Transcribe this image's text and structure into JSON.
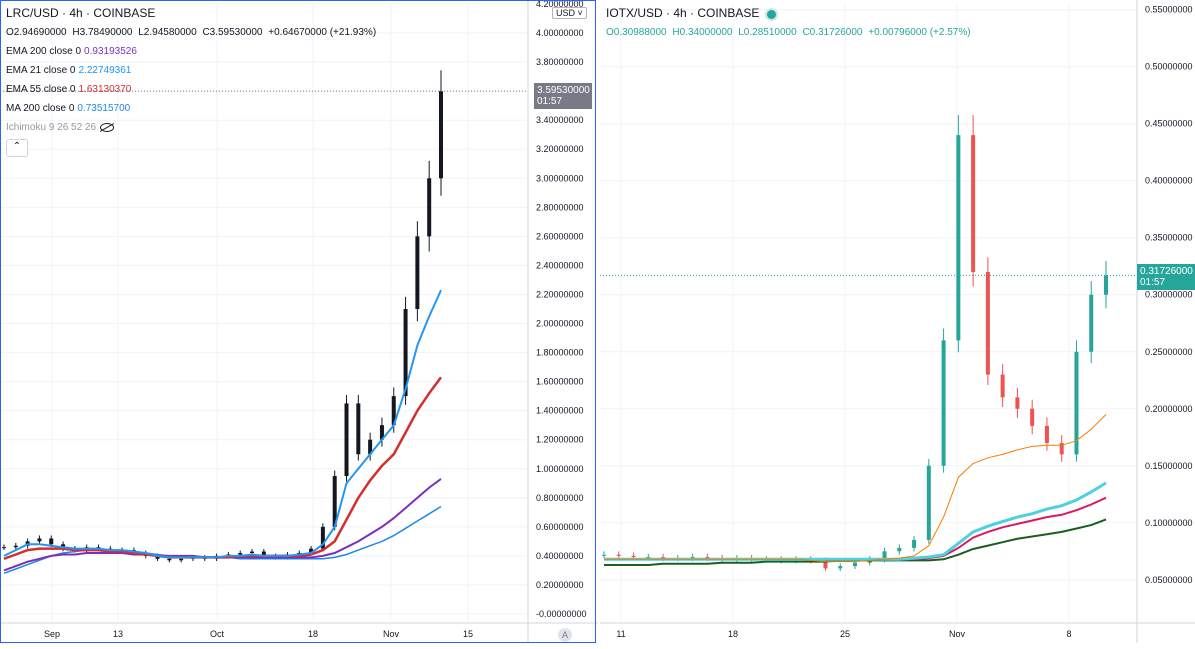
{
  "chart_data": [
    {
      "type": "candlestick",
      "title": "LRC/USD · 4h · COINBASE",
      "ohlc": {
        "open": "O2.94690000",
        "high": "H3.78490000",
        "low": "L2.94580000",
        "close": "C3.59530000",
        "change": "+0.64670000 (+21.93%)"
      },
      "last_price": "3.59530000",
      "countdown": "01:57",
      "currency": "USD",
      "indicators": [
        {
          "label": "EMA 200 close 0",
          "value": "0.93193526",
          "color": "#7b2fbe"
        },
        {
          "label": "EMA 21 close 0",
          "value": "2.22749361",
          "color": "#2196f3"
        },
        {
          "label": "EMA 55 close 0",
          "value": "1.63130370",
          "color": "#d32f2f"
        },
        {
          "label": "MA 200 close 0",
          "value": "0.73515700",
          "color": "#1e88e5"
        },
        {
          "label": "Ichimoku 9 26 52 26",
          "value": "",
          "color": "#b2b5be"
        }
      ],
      "y_ticks": [
        "4.20000000",
        "4.00000000",
        "3.80000000",
        "3.60000000",
        "3.40000000",
        "3.20000000",
        "3.00000000",
        "2.80000000",
        "2.60000000",
        "2.40000000",
        "2.20000000",
        "2.00000000",
        "1.80000000",
        "1.60000000",
        "1.40000000",
        "1.20000000",
        "1.00000000",
        "0.80000000",
        "0.60000000",
        "0.40000000",
        "0.20000000",
        "-0.00000000"
      ],
      "y_tick_values": [
        4.2,
        4.0,
        3.8,
        3.6,
        3.4,
        3.2,
        3.0,
        2.8,
        2.6,
        2.4,
        2.2,
        2.0,
        1.8,
        1.6,
        1.4,
        1.2,
        1.0,
        0.8,
        0.6,
        0.4,
        0.2,
        0.0
      ],
      "x_ticks": [
        "Sep",
        "13",
        "Oct",
        "18",
        "Nov",
        "15"
      ],
      "ylim": [
        0,
        4.2
      ],
      "close_series": [
        0.46,
        0.47,
        0.5,
        0.52,
        0.48,
        0.45,
        0.44,
        0.46,
        0.45,
        0.43,
        0.44,
        0.42,
        0.4,
        0.38,
        0.37,
        0.38,
        0.39,
        0.38,
        0.4,
        0.41,
        0.42,
        0.43,
        0.4,
        0.39,
        0.41,
        0.42,
        0.45,
        0.6,
        0.95,
        1.45,
        1.1,
        1.2,
        1.3,
        1.5,
        2.1,
        2.6,
        3.0,
        3.6
      ],
      "ema21": [
        0.4,
        0.44,
        0.48,
        0.48,
        0.47,
        0.46,
        0.45,
        0.45,
        0.45,
        0.44,
        0.44,
        0.43,
        0.42,
        0.4,
        0.39,
        0.39,
        0.39,
        0.39,
        0.39,
        0.4,
        0.4,
        0.41,
        0.4,
        0.4,
        0.4,
        0.41,
        0.42,
        0.48,
        0.6,
        0.9,
        1.0,
        1.1,
        1.2,
        1.3,
        1.55,
        1.85,
        2.05,
        2.23
      ],
      "ema55": [
        0.38,
        0.41,
        0.44,
        0.45,
        0.45,
        0.45,
        0.44,
        0.44,
        0.44,
        0.43,
        0.43,
        0.42,
        0.41,
        0.4,
        0.39,
        0.39,
        0.39,
        0.39,
        0.39,
        0.39,
        0.4,
        0.4,
        0.4,
        0.4,
        0.4,
        0.4,
        0.41,
        0.44,
        0.5,
        0.65,
        0.8,
        0.92,
        1.02,
        1.1,
        1.25,
        1.4,
        1.52,
        1.63
      ],
      "ema200": [
        0.3,
        0.33,
        0.36,
        0.38,
        0.4,
        0.41,
        0.41,
        0.42,
        0.42,
        0.42,
        0.42,
        0.41,
        0.41,
        0.4,
        0.4,
        0.4,
        0.4,
        0.39,
        0.39,
        0.39,
        0.39,
        0.39,
        0.39,
        0.39,
        0.39,
        0.39,
        0.39,
        0.4,
        0.42,
        0.46,
        0.5,
        0.55,
        0.6,
        0.66,
        0.73,
        0.8,
        0.87,
        0.93
      ],
      "ma200": [
        0.28,
        0.31,
        0.34,
        0.37,
        0.4,
        0.42,
        0.43,
        0.44,
        0.44,
        0.44,
        0.44,
        0.43,
        0.42,
        0.41,
        0.4,
        0.4,
        0.4,
        0.39,
        0.39,
        0.39,
        0.38,
        0.38,
        0.38,
        0.38,
        0.38,
        0.38,
        0.38,
        0.38,
        0.39,
        0.41,
        0.44,
        0.47,
        0.5,
        0.54,
        0.59,
        0.64,
        0.69,
        0.74
      ]
    },
    {
      "type": "candlestick",
      "title": "IOTX/USD · 4h · COINBASE",
      "ohlc": {
        "open": "O0.30988000",
        "high": "H0.34000000",
        "low": "L0.28510000",
        "close": "C0.31726000",
        "change": "+0.00796000 (+2.57%)"
      },
      "last_price": "0.31726000",
      "countdown": "01:57",
      "y_ticks": [
        "0.55000000",
        "0.50000000",
        "0.45000000",
        "0.40000000",
        "0.35000000",
        "0.30000000",
        "0.25000000",
        "0.20000000",
        "0.15000000",
        "0.10000000",
        "0.05000000"
      ],
      "y_tick_values": [
        0.55,
        0.5,
        0.45,
        0.4,
        0.35,
        0.3,
        0.25,
        0.2,
        0.15,
        0.1,
        0.05
      ],
      "x_ticks": [
        "11",
        "18",
        "25",
        "Nov",
        "8"
      ],
      "ylim": [
        0.02,
        0.555
      ],
      "close_series": [
        0.072,
        0.071,
        0.07,
        0.07,
        0.069,
        0.069,
        0.07,
        0.069,
        0.068,
        0.069,
        0.068,
        0.068,
        0.067,
        0.068,
        0.067,
        0.06,
        0.062,
        0.065,
        0.068,
        0.075,
        0.078,
        0.085,
        0.15,
        0.26,
        0.44,
        0.32,
        0.23,
        0.21,
        0.2,
        0.185,
        0.17,
        0.16,
        0.25,
        0.3,
        0.317
      ],
      "line_orange": [
        0.068,
        0.068,
        0.068,
        0.068,
        0.068,
        0.068,
        0.068,
        0.068,
        0.068,
        0.068,
        0.068,
        0.068,
        0.068,
        0.068,
        0.067,
        0.066,
        0.066,
        0.066,
        0.067,
        0.068,
        0.069,
        0.071,
        0.08,
        0.105,
        0.14,
        0.152,
        0.157,
        0.16,
        0.164,
        0.167,
        0.168,
        0.168,
        0.172,
        0.182,
        0.195
      ],
      "line_cyan": [
        0.068,
        0.068,
        0.068,
        0.068,
        0.068,
        0.068,
        0.068,
        0.068,
        0.068,
        0.068,
        0.068,
        0.068,
        0.068,
        0.068,
        0.068,
        0.068,
        0.068,
        0.068,
        0.068,
        0.068,
        0.068,
        0.069,
        0.07,
        0.072,
        0.082,
        0.092,
        0.097,
        0.101,
        0.105,
        0.108,
        0.112,
        0.115,
        0.12,
        0.127,
        0.135
      ],
      "line_pink": [
        0.068,
        0.068,
        0.068,
        0.068,
        0.068,
        0.068,
        0.068,
        0.068,
        0.068,
        0.068,
        0.068,
        0.068,
        0.068,
        0.068,
        0.068,
        0.068,
        0.068,
        0.068,
        0.068,
        0.068,
        0.068,
        0.068,
        0.069,
        0.071,
        0.078,
        0.087,
        0.092,
        0.096,
        0.099,
        0.102,
        0.105,
        0.107,
        0.111,
        0.116,
        0.122
      ],
      "line_dark": [
        0.063,
        0.063,
        0.063,
        0.063,
        0.064,
        0.064,
        0.064,
        0.064,
        0.065,
        0.065,
        0.065,
        0.066,
        0.066,
        0.066,
        0.066,
        0.066,
        0.067,
        0.067,
        0.067,
        0.067,
        0.067,
        0.067,
        0.067,
        0.068,
        0.072,
        0.077,
        0.08,
        0.083,
        0.086,
        0.088,
        0.09,
        0.092,
        0.095,
        0.098,
        0.103
      ]
    }
  ]
}
